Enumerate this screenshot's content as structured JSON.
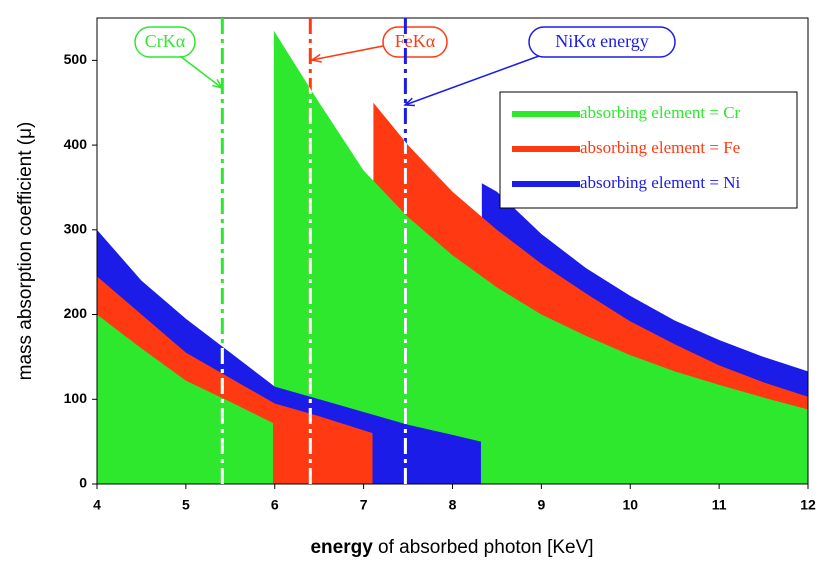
{
  "chart_data": {
    "type": "area",
    "xlabel_bold": "energy",
    "xlabel": "of absorbed photon [KeV]",
    "ylabel": "mass absorption coefficient (μ)",
    "xlim": [
      4,
      12
    ],
    "ylim": [
      0,
      550
    ],
    "xticks": [
      4,
      5,
      6,
      7,
      8,
      9,
      10,
      11,
      12
    ],
    "yticks": [
      0,
      100,
      200,
      300,
      400,
      500
    ],
    "legend": "upper right",
    "series": [
      {
        "name": "absorbing element = Cr",
        "color": "#2ee82e",
        "x": [
          4,
          4.5,
          5,
          5.5,
          5.98,
          5.99,
          5.99,
          6.5,
          7,
          7.5,
          8,
          8.5,
          9,
          9.5,
          10,
          10.5,
          11,
          11.5,
          12
        ],
        "values": [
          200,
          160,
          122,
          97,
          72,
          null,
          535,
          450,
          370,
          315,
          270,
          232,
          200,
          175,
          152,
          133,
          117,
          102,
          88
        ]
      },
      {
        "name": "absorbing element = Fe",
        "color": "#ff3a12",
        "x": [
          4,
          4.5,
          5,
          5.5,
          6,
          6.5,
          7.1,
          7.11,
          7.11,
          7.5,
          8,
          8.5,
          9,
          9.5,
          10,
          10.5,
          11,
          11.5,
          12
        ],
        "values": [
          245,
          200,
          155,
          125,
          95,
          80,
          60,
          null,
          450,
          400,
          345,
          300,
          260,
          225,
          192,
          165,
          140,
          120,
          103
        ]
      },
      {
        "name": "absorbing element = Ni",
        "color": "#1c1ce8",
        "x": [
          4,
          4.5,
          5,
          5.5,
          6,
          6.5,
          7,
          7.5,
          8,
          8.32,
          8.33,
          8.33,
          8.5,
          9,
          9.5,
          10,
          10.5,
          11,
          11.5,
          12
        ],
        "values": [
          300,
          240,
          195,
          155,
          115,
          100,
          85,
          70,
          58,
          50,
          null,
          355,
          345,
          295,
          255,
          222,
          193,
          170,
          150,
          133
        ]
      }
    ],
    "lines": [
      {
        "label": "CrKα",
        "x": 5.41,
        "color": "#2ee82e"
      },
      {
        "label": "FeKα",
        "x": 6.4,
        "color": "#ff3a12"
      },
      {
        "label": "NiKα energy",
        "x": 7.47,
        "color": "#1c1ce8"
      }
    ]
  }
}
